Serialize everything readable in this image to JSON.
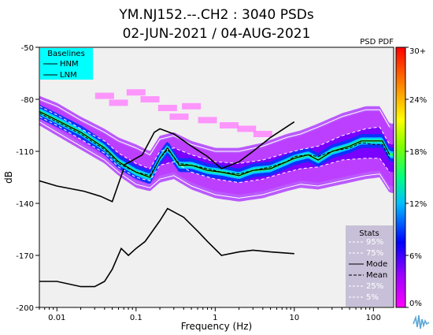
{
  "chart_data": {
    "type": "heatmap",
    "title_line1": "YM.NJ152.--.CH2 : 3040 PSDs",
    "title_line2": "02-JUN-2021 / 04-AUG-2021",
    "xlabel": "Frequency (Hz)",
    "ylabel": "dB",
    "x_scale": "log",
    "xlim": [
      0.006,
      180
    ],
    "ylim": [
      -200,
      -50
    ],
    "x_ticks": [
      {
        "value": 0.01,
        "label": "0.01"
      },
      {
        "value": 0.1,
        "label": "0.1"
      },
      {
        "value": 1,
        "label": "1"
      },
      {
        "value": 10,
        "label": "10"
      },
      {
        "value": 100,
        "label": "100"
      }
    ],
    "y_ticks": [
      {
        "value": -50,
        "label": "-50"
      },
      {
        "value": -80,
        "label": "-80"
      },
      {
        "value": -110,
        "label": "-110"
      },
      {
        "value": -140,
        "label": "-140"
      },
      {
        "value": -170,
        "label": "-170"
      },
      {
        "value": -200,
        "label": "-200"
      }
    ],
    "colorbar": {
      "label": "PSD PDF",
      "ticks": [
        {
          "value": 0,
          "label": "0%"
        },
        {
          "value": 6,
          "label": "6%"
        },
        {
          "value": 12,
          "label": "12%"
        },
        {
          "value": 18,
          "label": "18%"
        },
        {
          "value": 24,
          "label": "24%"
        },
        {
          "value": 30,
          "label": "30+"
        }
      ],
      "range": [
        0,
        30
      ],
      "colors": [
        "#ff00ff",
        "#8000ff",
        "#0000ff",
        "#00ffff",
        "#00ff00",
        "#ffff00",
        "#ff8000",
        "#ff0000"
      ]
    },
    "baselines_legend": {
      "title": "Baselines",
      "items": [
        "HNM",
        "LNM"
      ],
      "background": "#00ffff"
    },
    "stats_legend": {
      "title": "Stats",
      "items": [
        "95%",
        "75%",
        "Mode",
        "Mean",
        "25%",
        "5%"
      ],
      "background": "#c8c0d8"
    },
    "hnm": {
      "x": [
        0.1,
        0.17,
        0.4,
        0.8,
        1.24,
        2.4,
        4.3,
        5.0,
        6.0,
        10.0
      ],
      "y": [
        -130,
        -122,
        -115,
        -118,
        -119,
        -111,
        -100,
        -98,
        -97,
        -92
      ]
    },
    "hnm_low": {
      "x": [
        0.006,
        0.01,
        0.022,
        0.036,
        0.05,
        0.07
      ],
      "y": [
        -127,
        -130,
        -133,
        -136,
        -139,
        -120
      ]
    },
    "hnm_peak": {
      "x": [
        0.07,
        0.12,
        0.17,
        0.2,
        0.3,
        0.5,
        0.8,
        1.2,
        2.0,
        3.0,
        5.0,
        10.0
      ],
      "y": [
        -118,
        -112,
        -99,
        -97,
        -100,
        -107,
        -113,
        -120,
        -116,
        -110,
        -102,
        -93
      ]
    },
    "lnm": {
      "x": [
        0.006,
        0.01,
        0.02,
        0.03,
        0.04,
        0.05,
        0.065,
        0.08,
        0.1,
        0.13,
        0.2,
        0.25,
        0.4,
        0.6,
        0.8,
        1.2,
        2.0,
        3.0,
        5.0,
        10.0
      ],
      "y": [
        -185,
        -185,
        -188,
        -188,
        -185,
        -178,
        -166,
        -170,
        -166,
        -162,
        -150,
        -143,
        -148,
        -156,
        -162,
        -170,
        -168,
        -167,
        -168,
        -169
      ]
    },
    "mode": {
      "x": [
        0.006,
        0.01,
        0.02,
        0.04,
        0.06,
        0.1,
        0.15,
        0.2,
        0.25,
        0.35,
        0.5,
        0.8,
        1.2,
        2.0,
        3.0,
        5.0,
        8.0,
        10.0,
        15.0,
        20.0,
        30.0,
        50.0,
        70.0,
        100.0,
        130.0,
        160.0
      ],
      "y": [
        -87,
        -92,
        -99,
        -108,
        -116,
        -122,
        -125,
        -114,
        -108,
        -118,
        -118,
        -121,
        -122,
        -124,
        -121,
        -120,
        -116,
        -114,
        -112,
        -115,
        -110,
        -107,
        -104,
        -104,
        -104,
        -112
      ]
    },
    "mean": {
      "x": [
        0.006,
        0.01,
        0.02,
        0.04,
        0.06,
        0.1,
        0.15,
        0.2,
        0.25,
        0.35,
        0.5,
        0.8,
        1.2,
        2.0,
        3.0,
        5.0,
        8.0,
        10.0,
        15.0,
        20.0,
        30.0,
        50.0,
        70.0,
        100.0,
        130.0,
        160.0
      ],
      "y": [
        -88,
        -93,
        -100,
        -109,
        -117,
        -122,
        -124,
        -114,
        -109,
        -117,
        -118,
        -120,
        -122,
        -123,
        -121,
        -119,
        -116,
        -113,
        -112,
        -113,
        -110,
        -108,
        -105,
        -106,
        -106,
        -114
      ]
    },
    "p95": {
      "x": [
        0.006,
        0.01,
        0.02,
        0.04,
        0.06,
        0.1,
        0.15,
        0.2,
        0.3,
        0.5,
        1.0,
        2.0,
        4.0,
        8.0,
        12.0,
        20.0,
        40.0,
        80.0,
        120.0,
        160.0
      ],
      "y": [
        -80,
        -84,
        -92,
        -99,
        -104,
        -108,
        -112,
        -103,
        -101,
        -106,
        -110,
        -110,
        -107,
        -102,
        -100,
        -96,
        -90,
        -86,
        -86,
        -96
      ]
    },
    "p75": {
      "x": [
        0.006,
        0.01,
        0.02,
        0.04,
        0.06,
        0.1,
        0.15,
        0.2,
        0.3,
        0.5,
        1.0,
        2.0,
        4.0,
        8.0,
        12.0,
        20.0,
        40.0,
        80.0,
        120.0,
        160.0
      ],
      "y": [
        -84,
        -89,
        -97,
        -104,
        -111,
        -117,
        -120,
        -110,
        -108,
        -112,
        -116,
        -117,
        -115,
        -111,
        -109,
        -107,
        -101,
        -97,
        -96,
        -106
      ]
    },
    "p25": {
      "x": [
        0.006,
        0.01,
        0.02,
        0.04,
        0.06,
        0.1,
        0.15,
        0.2,
        0.3,
        0.5,
        1.0,
        2.0,
        4.0,
        8.0,
        12.0,
        20.0,
        40.0,
        80.0,
        120.0,
        160.0
      ],
      "y": [
        -90,
        -95,
        -103,
        -111,
        -119,
        -125,
        -127,
        -118,
        -116,
        -122,
        -126,
        -128,
        -126,
        -122,
        -120,
        -119,
        -115,
        -114,
        -114,
        -122
      ]
    },
    "p5": {
      "x": [
        0.006,
        0.01,
        0.02,
        0.04,
        0.06,
        0.1,
        0.15,
        0.2,
        0.3,
        0.5,
        1.0,
        2.0,
        4.0,
        8.0,
        12.0,
        20.0,
        40.0,
        80.0,
        120.0,
        160.0
      ],
      "y": [
        -93,
        -99,
        -107,
        -115,
        -122,
        -129,
        -131,
        -126,
        -124,
        -130,
        -135,
        -137,
        -135,
        -131,
        -129,
        -130,
        -127,
        -124,
        -123,
        -132
      ]
    },
    "outliers": {
      "x": [
        0.04,
        0.06,
        0.1,
        0.15,
        0.25,
        0.35,
        0.5,
        0.8,
        1.5,
        2.5,
        4.0
      ],
      "y": [
        -78,
        -82,
        -76,
        -80,
        -85,
        -90,
        -84,
        -92,
        -95,
        -97,
        -100
      ]
    }
  }
}
